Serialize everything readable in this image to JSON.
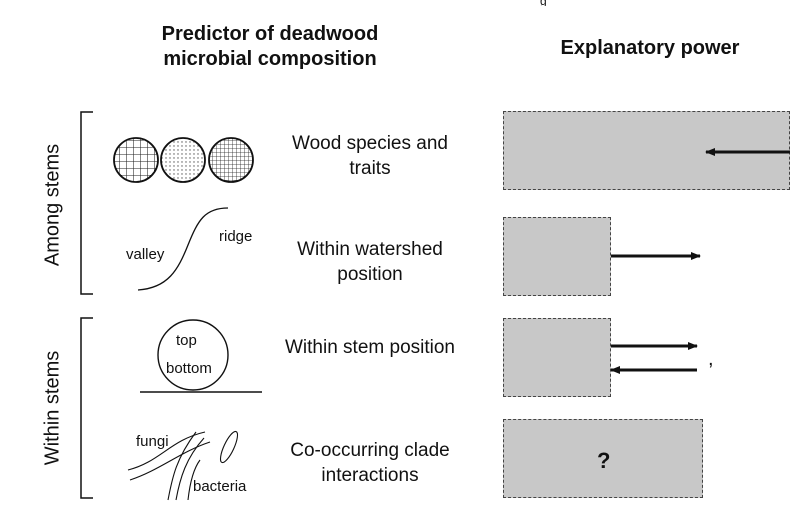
{
  "headers": {
    "predictor": "Predictor of deadwood microbial composition",
    "power": "Explanatory power"
  },
  "groups": {
    "among": "Among stems",
    "within": "Within stems"
  },
  "predictors": [
    {
      "label": "Wood species and traits",
      "explanatory_power": "high",
      "arrow": "left"
    },
    {
      "label": "Within watershed position",
      "explanatory_power": "low",
      "arrow": "right"
    },
    {
      "label": "Within stem position",
      "explanatory_power": "low",
      "arrow": "both"
    },
    {
      "label": "Co-occurring clade interactions",
      "explanatory_power": "unknown",
      "arrow": "none",
      "box_text": "?"
    }
  ],
  "icon_labels": {
    "valley": "valley",
    "ridge": "ridge",
    "top": "top",
    "bottom": "bottom",
    "fungi": "fungi",
    "bacteria": "bacteria"
  },
  "misc": {
    "comma": ",",
    "top_fragment": "g"
  },
  "colors": {
    "box_fill": "#c8c8c8",
    "line": "#111111"
  },
  "icons": [
    "wood-cross-sections-icon",
    "watershed-slope-icon",
    "stem-cross-section-icon",
    "microbe-interaction-icon"
  ]
}
